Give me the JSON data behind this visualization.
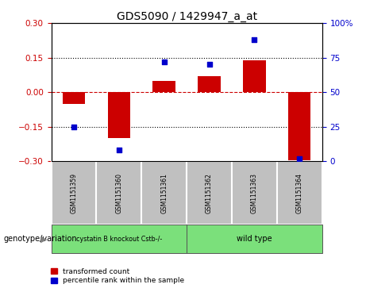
{
  "title": "GDS5090 / 1429947_a_at",
  "samples": [
    "GSM1151359",
    "GSM1151360",
    "GSM1151361",
    "GSM1151362",
    "GSM1151363",
    "GSM1151364"
  ],
  "red_values": [
    -0.05,
    -0.2,
    0.05,
    0.07,
    0.14,
    -0.3
  ],
  "blue_values": [
    25,
    8,
    72,
    70,
    88,
    2
  ],
  "ylim_left": [
    -0.3,
    0.3
  ],
  "ylim_right": [
    0,
    100
  ],
  "yticks_left": [
    -0.3,
    -0.15,
    0,
    0.15,
    0.3
  ],
  "yticks_right": [
    0,
    25,
    50,
    75,
    100
  ],
  "ytick_labels_right": [
    "0",
    "25",
    "50",
    "75",
    "100%"
  ],
  "red_color": "#cc0000",
  "blue_color": "#0000cc",
  "bar_width": 0.5,
  "group1_label": "cystatin B knockout Cstb-/-",
  "group2_label": "wild type",
  "group_color": "#7be07b",
  "group_label_prefix": "genotype/variation",
  "legend_red": "transformed count",
  "legend_blue": "percentile rank within the sample",
  "dotted_line_color": "#000000",
  "zero_line_color": "#cc0000",
  "bg_color": "#ffffff",
  "tick_label_color_left": "#cc0000",
  "tick_label_color_right": "#0000cc",
  "sample_box_color": "#c0c0c0",
  "title_fontsize": 10
}
